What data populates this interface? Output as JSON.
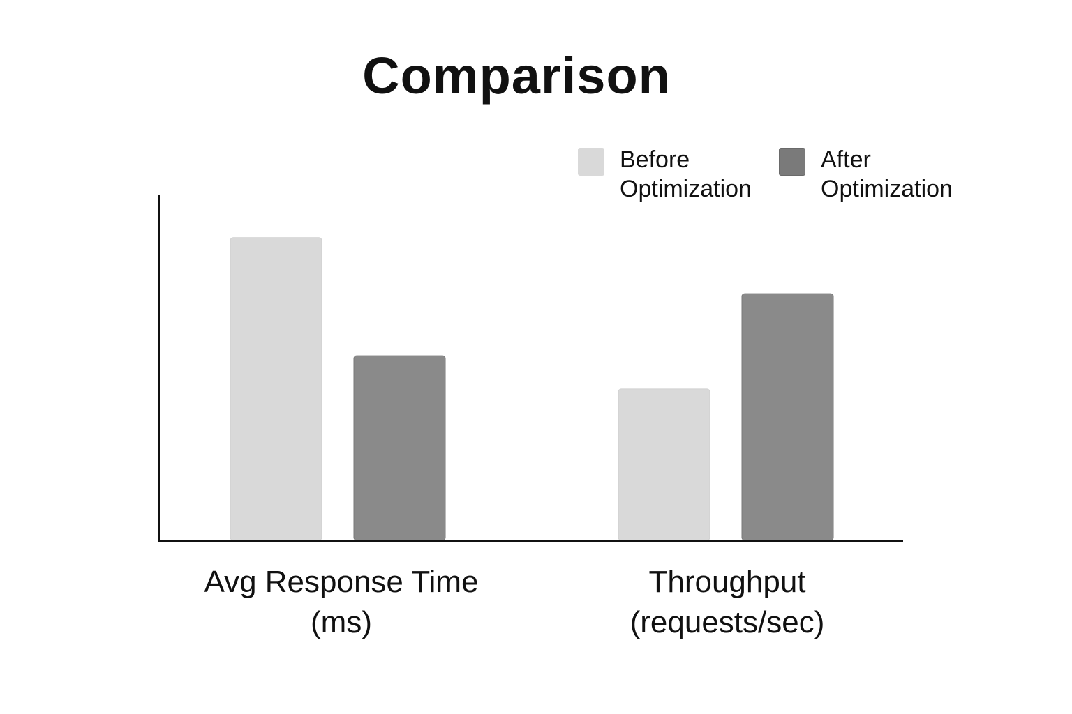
{
  "chart_data": {
    "type": "bar",
    "title": "Comparison",
    "xlabel": "",
    "ylabel": "",
    "categories": [
      "Avg Response Time (ms)",
      "Throughput (requests/sec)"
    ],
    "series": [
      {
        "name": "Before Optimization",
        "values": [
          100,
          50
        ],
        "color": "#d9d9d9"
      },
      {
        "name": "After Optimization",
        "values": [
          61,
          81.5
        ],
        "color": "#8a8a8a"
      }
    ],
    "ylim": [
      0,
      114
    ],
    "grid": false,
    "legend_position": "top-right",
    "y_ticks_shown": false
  }
}
